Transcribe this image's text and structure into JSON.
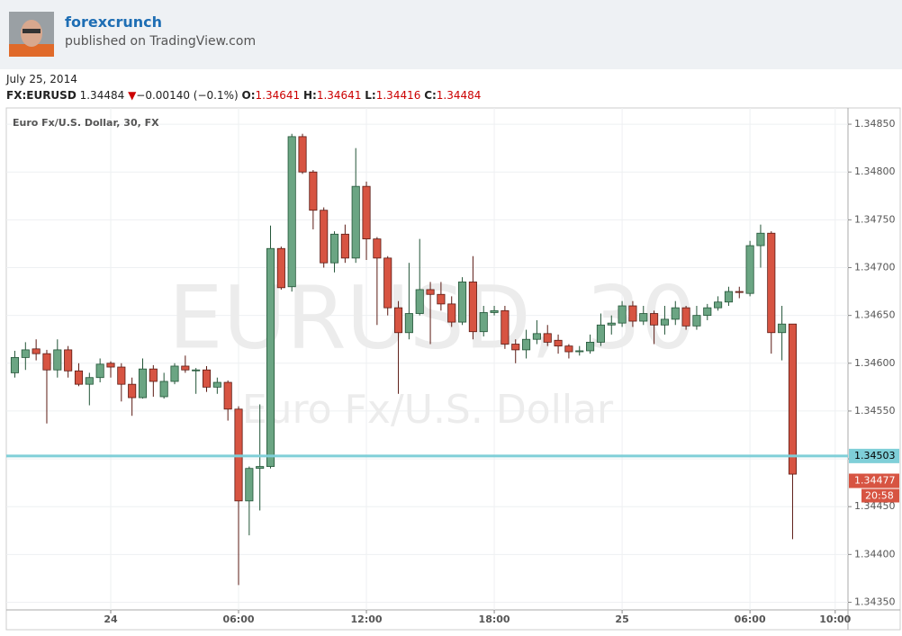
{
  "header": {
    "author": "forexcrunch",
    "publisher": "published on TradingView.com"
  },
  "date": "July 25, 2014",
  "quote": {
    "symbol": "FX:EURUSD",
    "last": "1.34484",
    "direction": "▼",
    "change": "−0.00140 (−0.1%)",
    "o_label": "O:",
    "o": "1.34641",
    "h_label": "H:",
    "h": "1.34641",
    "l_label": "L:",
    "l": "1.34416",
    "c_label": "C:",
    "c": "1.34484"
  },
  "chart_data": {
    "type": "candlestick",
    "title": "Euro Fx/U.S. Dollar, 30, FX",
    "watermark": "EURUSD, 30",
    "watermark_sub": "Euro Fx/U.S. Dollar",
    "up_color": "#6ba583",
    "down_color": "#d75442",
    "x": [
      -4.5,
      -4,
      -3.5,
      -3,
      -2.5,
      -2,
      -1.5,
      -1,
      -0.5,
      0,
      0.5,
      1,
      1.5,
      2,
      2.5,
      3,
      3.5,
      4,
      4.5,
      5,
      5.5,
      6,
      6.5,
      7,
      7.5,
      8,
      8.5,
      9,
      9.5,
      10,
      10.5,
      11,
      11.5,
      12,
      12.5,
      13,
      13.5,
      14,
      14.5,
      15,
      15.5,
      16,
      16.5,
      17,
      17.5,
      18,
      18.5,
      19,
      19.5,
      20,
      20.5,
      21,
      21.5,
      22,
      22.5,
      23,
      23.5,
      24,
      24.5,
      25,
      25.5,
      26,
      26.5,
      27,
      27.5,
      28,
      28.5,
      29,
      29.5,
      30,
      30.5,
      31,
      31.5,
      32
    ],
    "open": [
      1.3459,
      1.34606,
      1.34615,
      1.3461,
      1.34593,
      1.34614,
      1.34592,
      1.34578,
      1.34585,
      1.346,
      1.34596,
      1.34578,
      1.34564,
      1.34594,
      1.34565,
      1.34581,
      1.34597,
      1.34593,
      1.34593,
      1.34575,
      1.3458,
      1.34552,
      1.34456,
      1.3449,
      1.34492,
      1.3472,
      1.3468,
      1.34837,
      1.348,
      1.3476,
      1.34705,
      1.34735,
      1.3471,
      1.34785,
      1.3473,
      1.3471,
      1.34658,
      1.34632,
      1.34652,
      1.34677,
      1.34672,
      1.34662,
      1.34643,
      1.34685,
      1.34633,
      1.34653,
      1.34655,
      1.3462,
      1.34614,
      1.34625,
      1.34631,
      1.34624,
      1.34618,
      1.34612,
      1.34613,
      1.34622,
      1.3464,
      1.34642,
      1.3466,
      1.34644,
      1.34652,
      1.3464,
      1.34646,
      1.34658,
      1.34639,
      1.3465,
      1.34658,
      1.34664,
      1.34675,
      1.34673,
      1.34723,
      1.34736,
      1.34632,
      1.34641
    ],
    "high": [
      1.34613,
      1.34622,
      1.34625,
      1.34614,
      1.34625,
      1.34618,
      1.346,
      1.3459,
      1.34605,
      1.34602,
      1.346,
      1.34585,
      1.34605,
      1.34598,
      1.3459,
      1.346,
      1.34608,
      1.34595,
      1.34597,
      1.34585,
      1.34582,
      1.34555,
      1.34492,
      1.34557,
      1.34744,
      1.34722,
      1.3484,
      1.3484,
      1.34802,
      1.34763,
      1.34738,
      1.34745,
      1.34825,
      1.3479,
      1.34732,
      1.34712,
      1.34665,
      1.34705,
      1.3473,
      1.34685,
      1.34685,
      1.3467,
      1.3469,
      1.34712,
      1.3466,
      1.3466,
      1.3466,
      1.34625,
      1.34635,
      1.34645,
      1.3464,
      1.3463,
      1.3462,
      1.34618,
      1.3463,
      1.34652,
      1.3465,
      1.34665,
      1.34665,
      1.3466,
      1.34655,
      1.3466,
      1.34665,
      1.3466,
      1.3466,
      1.34662,
      1.3467,
      1.3468,
      1.3468,
      1.34728,
      1.34745,
      1.34738,
      1.3466,
      1.34641
    ],
    "low": [
      1.34585,
      1.34593,
      1.34603,
      1.34537,
      1.34585,
      1.34585,
      1.34576,
      1.34556,
      1.3458,
      1.34585,
      1.3456,
      1.34545,
      1.34563,
      1.34565,
      1.34563,
      1.34578,
      1.3459,
      1.34568,
      1.3457,
      1.34568,
      1.3454,
      1.34368,
      1.3442,
      1.34446,
      1.3449,
      1.34677,
      1.34675,
      1.34798,
      1.3474,
      1.347,
      1.34695,
      1.34705,
      1.34705,
      1.34708,
      1.3464,
      1.3465,
      1.34568,
      1.34625,
      1.3465,
      1.3462,
      1.34655,
      1.34638,
      1.3464,
      1.34625,
      1.34628,
      1.3465,
      1.34615,
      1.346,
      1.34605,
      1.3462,
      1.34618,
      1.3461,
      1.34605,
      1.34608,
      1.3461,
      1.34618,
      1.3463,
      1.34638,
      1.34638,
      1.3464,
      1.3462,
      1.3463,
      1.3464,
      1.34635,
      1.34635,
      1.34645,
      1.34655,
      1.3466,
      1.34668,
      1.3467,
      1.347,
      1.3461,
      1.34603,
      1.34416
    ],
    "close": [
      1.34606,
      1.34614,
      1.3461,
      1.34593,
      1.34614,
      1.34592,
      1.34578,
      1.34585,
      1.34599,
      1.34596,
      1.34578,
      1.34564,
      1.34594,
      1.34581,
      1.34581,
      1.34597,
      1.34593,
      1.34593,
      1.34575,
      1.3458,
      1.34552,
      1.34456,
      1.3449,
      1.34492,
      1.3472,
      1.34679,
      1.34837,
      1.348,
      1.3476,
      1.34705,
      1.34735,
      1.3471,
      1.34785,
      1.3473,
      1.3471,
      1.34658,
      1.34632,
      1.34652,
      1.34677,
      1.34672,
      1.34662,
      1.34643,
      1.34685,
      1.34633,
      1.34653,
      1.34655,
      1.3462,
      1.34614,
      1.34625,
      1.34631,
      1.34622,
      1.34618,
      1.34612,
      1.34613,
      1.34622,
      1.3464,
      1.34642,
      1.3466,
      1.34644,
      1.34652,
      1.3464,
      1.34646,
      1.34658,
      1.34639,
      1.3465,
      1.34658,
      1.34664,
      1.34675,
      1.34674,
      1.34723,
      1.34736,
      1.34632,
      1.34641,
      1.34484
    ],
    "xlim": [
      -4.9,
      34.6
    ],
    "xticks": [
      {
        "value": 0,
        "label": "24"
      },
      {
        "value": 6,
        "label": "06:00"
      },
      {
        "value": 12,
        "label": "12:00"
      },
      {
        "value": 18,
        "label": "18:00"
      },
      {
        "value": 24,
        "label": "25"
      },
      {
        "value": 30,
        "label": "06:00"
      },
      {
        "value": 34,
        "label": "10:00"
      }
    ],
    "ylim": [
      1.34342,
      1.34867
    ],
    "yticks": [
      {
        "value": 1.3435,
        "label": "1.34350"
      },
      {
        "value": 1.344,
        "label": "1.34400"
      },
      {
        "value": 1.3445,
        "label": "1.34450"
      },
      {
        "value": 1.345,
        "label": "1.34500"
      },
      {
        "value": 1.3455,
        "label": "1.34550"
      },
      {
        "value": 1.346,
        "label": "1.34600"
      },
      {
        "value": 1.3465,
        "label": "1.34650"
      },
      {
        "value": 1.347,
        "label": "1.34700"
      },
      {
        "value": 1.3475,
        "label": "1.34750"
      },
      {
        "value": 1.348,
        "label": "1.34800"
      },
      {
        "value": 1.3485,
        "label": "1.34850"
      }
    ],
    "grid": true,
    "hline": {
      "value": 1.34503,
      "label": "1.34503",
      "color": "#7fcfd8"
    },
    "price_marker": {
      "value": 1.34477,
      "label": "1.34477",
      "time": "20:58",
      "color": "#d75442"
    }
  }
}
